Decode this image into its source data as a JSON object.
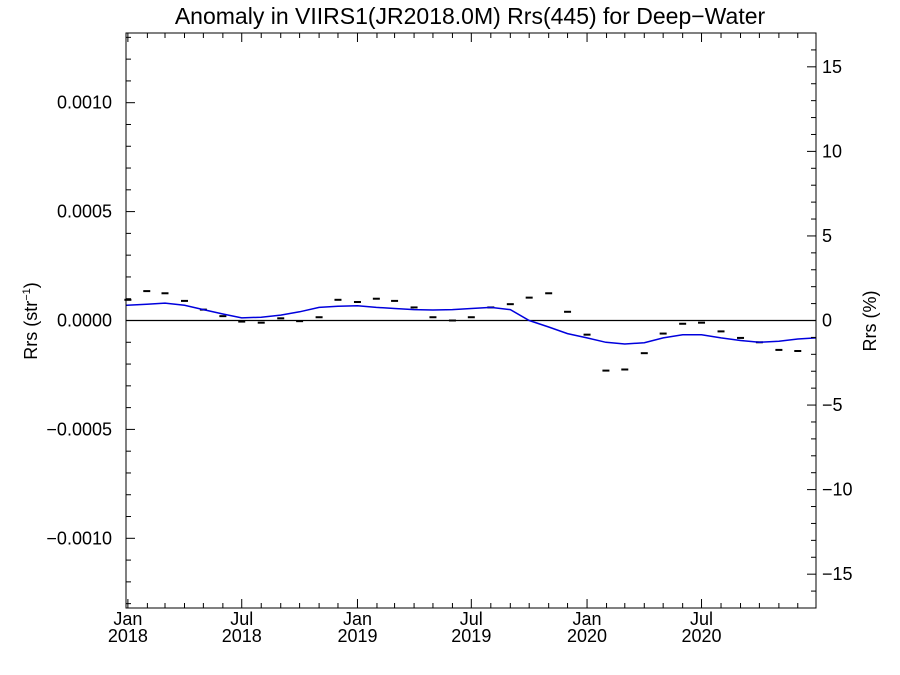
{
  "chart_data": {
    "type": "line",
    "title": "Anomaly in VIIRS1(JR2018.0M) Rrs(445) for Deep−Water",
    "ylabel_left": {
      "base": "Rrs (str",
      "sup": "−1",
      "end": ")"
    },
    "ylabel_right": "Rrs (%)",
    "ylim_left": [
      -0.00132,
      0.00132
    ],
    "ylim_right": [
      -17,
      17
    ],
    "xlim": [
      "2017-12-29",
      "2020-12-30"
    ],
    "x_ticks": [
      {
        "date": "2018-01-01",
        "month": "Jan",
        "year": "2018"
      },
      {
        "date": "2018-07-01",
        "month": "Jul",
        "year": "2018"
      },
      {
        "date": "2019-01-01",
        "month": "Jan",
        "year": "2019"
      },
      {
        "date": "2019-07-01",
        "month": "Jul",
        "year": "2019"
      },
      {
        "date": "2020-01-01",
        "month": "Jan",
        "year": "2020"
      },
      {
        "date": "2020-07-01",
        "month": "Jul",
        "year": "2020"
      }
    ],
    "y_ticks_left": [
      {
        "value": 0.001,
        "label": "0.0010"
      },
      {
        "value": 0.0005,
        "label": "0.0005"
      },
      {
        "value": 0.0,
        "label": "0.0000"
      },
      {
        "value": -0.0005,
        "label": "−0.0005"
      },
      {
        "value": -0.001,
        "label": "−0.0010"
      }
    ],
    "y_ticks_right": [
      {
        "value": 15,
        "label": "15"
      },
      {
        "value": 10,
        "label": "10"
      },
      {
        "value": 5,
        "label": "5"
      },
      {
        "value": 0,
        "label": "0"
      },
      {
        "value": -5,
        "label": "−5"
      },
      {
        "value": -10,
        "label": "−10"
      },
      {
        "value": -15,
        "label": "−15"
      }
    ],
    "series": [
      {
        "kind": "markers",
        "color": "#000000",
        "x": [
          "2018-01-01",
          "2018-01-31",
          "2018-03-01",
          "2018-04-01",
          "2018-05-01",
          "2018-06-01",
          "2018-07-01",
          "2018-08-01",
          "2018-09-01",
          "2018-10-01",
          "2018-11-01",
          "2018-12-01",
          "2019-01-01",
          "2019-01-31",
          "2019-03-01",
          "2019-04-01",
          "2019-05-01",
          "2019-06-01",
          "2019-07-01",
          "2019-08-01",
          "2019-09-01",
          "2019-10-01",
          "2019-11-01",
          "2019-12-01",
          "2020-01-01",
          "2020-01-31",
          "2020-03-01",
          "2020-04-01",
          "2020-05-01",
          "2020-06-01",
          "2020-07-01",
          "2020-08-01",
          "2020-09-01",
          "2020-10-01",
          "2020-11-01",
          "2020-12-01"
        ],
        "y": [
          9.5e-05,
          0.000135,
          0.000125,
          9e-05,
          5e-05,
          2e-05,
          -5e-06,
          -1e-05,
          1e-05,
          -3e-06,
          1.5e-05,
          9.5e-05,
          8.5e-05,
          0.0001,
          9e-05,
          6e-05,
          1.5e-05,
          0.0,
          1.5e-05,
          6e-05,
          7.5e-05,
          0.000105,
          0.000125,
          4e-05,
          -6.5e-05,
          -0.00023,
          -0.000225,
          -0.00015,
          -6e-05,
          -1.5e-05,
          -1e-05,
          -5e-05,
          -8e-05,
          -0.0001,
          -0.000135,
          -0.00014
        ]
      },
      {
        "kind": "line",
        "color": "#0000dd",
        "x": [
          "2017-12-29",
          "2018-01-31",
          "2018-03-01",
          "2018-04-01",
          "2018-05-01",
          "2018-06-01",
          "2018-07-01",
          "2018-08-01",
          "2018-09-01",
          "2018-10-01",
          "2018-11-01",
          "2018-12-01",
          "2019-01-01",
          "2019-01-31",
          "2019-03-01",
          "2019-04-01",
          "2019-05-01",
          "2019-06-01",
          "2019-07-01",
          "2019-08-01",
          "2019-09-01",
          "2019-10-01",
          "2019-11-01",
          "2019-12-01",
          "2020-01-01",
          "2020-01-31",
          "2020-03-01",
          "2020-04-01",
          "2020-05-01",
          "2020-06-01",
          "2020-07-01",
          "2020-08-01",
          "2020-09-01",
          "2020-10-01",
          "2020-11-01",
          "2020-12-01",
          "2020-12-30"
        ],
        "y": [
          7e-05,
          7.5e-05,
          8e-05,
          7e-05,
          5e-05,
          3e-05,
          1.2e-05,
          1.5e-05,
          2.5e-05,
          4e-05,
          6e-05,
          6.5e-05,
          6.8e-05,
          6e-05,
          5.5e-05,
          5e-05,
          4.8e-05,
          5e-05,
          5.5e-05,
          6e-05,
          5e-05,
          0.0,
          -3e-05,
          -6e-05,
          -8e-05,
          -0.0001,
          -0.000108,
          -0.000102,
          -8e-05,
          -6.5e-05,
          -6.5e-05,
          -8e-05,
          -9.2e-05,
          -0.0001,
          -9.5e-05,
          -8.5e-05,
          -8e-05
        ]
      }
    ],
    "zero_line": true,
    "grid": false
  }
}
